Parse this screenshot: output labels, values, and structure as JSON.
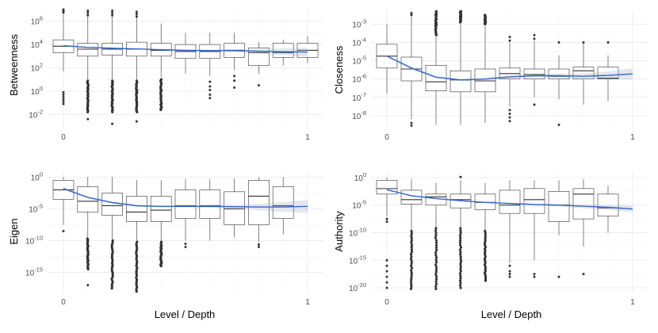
{
  "colors": {
    "trend": "#3366cc",
    "band": "#9aa9c4",
    "box_stroke": "#333333",
    "grid": "#ebebeb"
  },
  "chart_data": [
    {
      "type": "boxplot",
      "id": "betweenness",
      "ylabel": "Betweenness",
      "xlabel": "",
      "scale": "log10",
      "ylim_log10": [
        -3.2,
        7.0
      ],
      "yticks": [
        {
          "exp": -2,
          "label_base": "10",
          "label_exp": "-2"
        },
        {
          "exp": 0,
          "label_base": "10",
          "label_exp": "0"
        },
        {
          "exp": 2,
          "label_base": "10",
          "label_exp": "2"
        },
        {
          "exp": 4,
          "label_base": "10",
          "label_exp": "4"
        },
        {
          "exp": 6,
          "label_base": "10",
          "label_exp": "6"
        }
      ],
      "xticks": [
        {
          "value": 0,
          "label": "0"
        },
        {
          "value": 1,
          "label": "1"
        }
      ],
      "boxes": [
        {
          "x": 0.0,
          "q1": 3.3,
          "median": 3.85,
          "q3": 4.4,
          "lo": 1.7,
          "hi": 6.7,
          "out_lo": [
            -1.1,
            -0.9,
            -0.7,
            -0.5,
            -0.3,
            -0.1
          ],
          "out_hi": [
            6.75,
            6.85,
            7.0
          ],
          "dense_lo": false
        },
        {
          "x": 0.1,
          "q1": 3.0,
          "median": 3.6,
          "q3": 4.1,
          "lo": 1.0,
          "hi": 6.4,
          "out_lo": [
            -2.4,
            0.9
          ],
          "out_hi": [
            6.5,
            6.7,
            6.9
          ],
          "dense_lo": true
        },
        {
          "x": 0.2,
          "q1": 3.1,
          "median": 3.6,
          "q3": 4.1,
          "lo": 1.0,
          "hi": 6.4,
          "out_lo": [
            -2.8,
            0.9
          ],
          "out_hi": [
            6.5,
            6.7,
            6.9
          ],
          "dense_lo": true
        },
        {
          "x": 0.3,
          "q1": 3.0,
          "median": 3.6,
          "q3": 4.2,
          "lo": 1.0,
          "hi": 6.3,
          "out_lo": [
            -2.6,
            0.9
          ],
          "out_hi": [
            6.4,
            6.6,
            6.8
          ],
          "dense_lo": true
        },
        {
          "x": 0.4,
          "q1": 3.0,
          "median": 3.5,
          "q3": 4.1,
          "lo": 1.2,
          "hi": 5.8,
          "out_lo": [
            -1.5,
            1.0
          ],
          "out_hi": [],
          "dense_lo": true
        },
        {
          "x": 0.5,
          "q1": 2.8,
          "median": 3.4,
          "q3": 4.0,
          "lo": 1.5,
          "hi": 5.0,
          "out_lo": [],
          "out_hi": [],
          "dense_lo": false
        },
        {
          "x": 0.6,
          "q1": 2.8,
          "median": 3.4,
          "q3": 4.0,
          "lo": 1.3,
          "hi": 5.0,
          "out_lo": [
            -0.6,
            -0.3,
            0.1,
            0.4,
            0.8
          ],
          "out_hi": [],
          "dense_lo": false
        },
        {
          "x": 0.7,
          "q1": 2.9,
          "median": 3.5,
          "q3": 4.1,
          "lo": 1.8,
          "hi": 5.0,
          "out_lo": [
            0.3,
            0.9,
            1.3
          ],
          "out_hi": [],
          "dense_lo": false
        },
        {
          "x": 0.8,
          "q1": 2.2,
          "median": 3.3,
          "q3": 3.7,
          "lo": 1.5,
          "hi": 4.2,
          "out_lo": [
            0.5
          ],
          "out_hi": [],
          "dense_lo": false
        },
        {
          "x": 0.9,
          "q1": 2.9,
          "median": 3.3,
          "q3": 4.1,
          "lo": 2.2,
          "hi": 4.4,
          "out_lo": [],
          "out_hi": [],
          "dense_lo": false
        },
        {
          "x": 1.0,
          "q1": 2.9,
          "median": 3.5,
          "q3": 4.1,
          "lo": 2.4,
          "hi": 4.7,
          "out_lo": [],
          "out_hi": [],
          "dense_lo": false
        }
      ],
      "trend": [
        [
          0.0,
          3.9
        ],
        [
          0.1,
          3.75
        ],
        [
          0.2,
          3.68
        ],
        [
          0.3,
          3.62
        ],
        [
          0.4,
          3.55
        ],
        [
          0.5,
          3.5
        ],
        [
          0.6,
          3.48
        ],
        [
          0.7,
          3.47
        ],
        [
          0.8,
          3.42
        ],
        [
          0.9,
          3.38
        ],
        [
          1.0,
          3.35
        ]
      ],
      "band_halfwidth": [
        0.05,
        0.05,
        0.05,
        0.05,
        0.05,
        0.06,
        0.08,
        0.12,
        0.2,
        0.3,
        0.38
      ]
    },
    {
      "type": "boxplot",
      "id": "closeness",
      "ylabel": "Closeness",
      "xlabel": "",
      "scale": "log10",
      "ylim_log10": [
        -8.7,
        -2.2
      ],
      "yticks": [
        {
          "exp": -8,
          "label_base": "10",
          "label_exp": "-8"
        },
        {
          "exp": -7,
          "label_base": "10",
          "label_exp": "-7"
        },
        {
          "exp": -6,
          "label_base": "10",
          "label_exp": "-6"
        },
        {
          "exp": -5,
          "label_base": "10",
          "label_exp": "-5"
        },
        {
          "exp": -4,
          "label_base": "10",
          "label_exp": "-4"
        },
        {
          "exp": -3,
          "label_base": "10",
          "label_exp": "-3"
        }
      ],
      "xticks": [
        {
          "value": 0,
          "label": "0"
        },
        {
          "value": 1,
          "label": "1"
        }
      ],
      "boxes": [
        {
          "x": 0.0,
          "q1": -5.4,
          "median": -4.75,
          "q3": -4.1,
          "lo": -6.8,
          "hi": -3.0,
          "out_lo": [],
          "out_hi": [],
          "dense_lo": false
        },
        {
          "x": 0.1,
          "q1": -6.1,
          "median": -5.45,
          "q3": -4.8,
          "lo": -8.2,
          "hi": -2.3,
          "out_lo": [
            -8.4,
            -8.55
          ],
          "out_hi": [
            -2.5,
            -2.4
          ],
          "dense_lo": false
        },
        {
          "x": 0.2,
          "q1": -6.65,
          "median": -6.15,
          "q3": -5.25,
          "lo": -8.5,
          "hi": -3.7,
          "out_lo": [],
          "out_hi": [],
          "dense_lo": false,
          "dense_hi": true,
          "dense_hi_range": [
            -3.6,
            -2.3
          ]
        },
        {
          "x": 0.3,
          "q1": -6.7,
          "median": -6.05,
          "q3": -5.55,
          "lo": -8.5,
          "hi": -3.0,
          "out_lo": [],
          "out_hi": [
            -2.4
          ],
          "dense_lo": false,
          "dense_hi": true,
          "dense_hi_range": [
            -2.9,
            -2.3
          ]
        },
        {
          "x": 0.4,
          "q1": -6.7,
          "median": -6.1,
          "q3": -5.45,
          "lo": -8.4,
          "hi": -3.1,
          "out_lo": [],
          "out_hi": [],
          "dense_lo": false,
          "dense_hi": true,
          "dense_hi_range": [
            -3.0,
            -2.5
          ]
        },
        {
          "x": 0.5,
          "q1": -6.0,
          "median": -5.7,
          "q3": -5.4,
          "lo": -7.5,
          "hi": -4.0,
          "out_lo": [
            -7.7,
            -7.9,
            -8.1,
            -8.3
          ],
          "out_hi": [
            -3.9,
            -3.7
          ],
          "dense_lo": false
        },
        {
          "x": 0.6,
          "q1": -6.0,
          "median": -5.75,
          "q3": -5.45,
          "lo": -7.0,
          "hi": -3.9,
          "out_lo": [
            -7.4
          ],
          "out_hi": [
            -3.8,
            -3.6
          ],
          "dense_lo": false
        },
        {
          "x": 0.7,
          "q1": -6.0,
          "median": -5.85,
          "q3": -5.45,
          "lo": -7.1,
          "hi": -4.7,
          "out_lo": [
            -8.5
          ],
          "out_hi": [
            -4.0
          ],
          "dense_lo": false
        },
        {
          "x": 0.8,
          "q1": -6.0,
          "median": -5.55,
          "q3": -5.35,
          "lo": -7.4,
          "hi": -4.0,
          "out_lo": [],
          "out_hi": [
            -4.0
          ],
          "dense_lo": false
        },
        {
          "x": 0.9,
          "q1": -6.0,
          "median": -5.95,
          "q3": -5.35,
          "lo": -7.2,
          "hi": -4.7,
          "out_lo": [],
          "out_hi": [
            -4.0
          ],
          "dense_lo": false
        }
      ],
      "trend": [
        [
          0.0,
          -4.75
        ],
        [
          0.1,
          -5.4
        ],
        [
          0.2,
          -5.9
        ],
        [
          0.3,
          -6.05
        ],
        [
          0.4,
          -6.0
        ],
        [
          0.5,
          -5.88
        ],
        [
          0.6,
          -5.82
        ],
        [
          0.7,
          -5.82
        ],
        [
          0.8,
          -5.85
        ],
        [
          0.9,
          -5.8
        ],
        [
          1.0,
          -5.72
        ]
      ],
      "band_halfwidth": [
        0.06,
        0.06,
        0.06,
        0.06,
        0.06,
        0.08,
        0.1,
        0.12,
        0.16,
        0.22,
        0.3
      ]
    },
    {
      "type": "boxplot",
      "id": "eigen",
      "ylabel": "Eigen",
      "xlabel": "Level / Depth",
      "scale": "log10",
      "ylim_log10": [
        -18.3,
        0.8
      ],
      "yticks": [
        {
          "exp": -15,
          "label_base": "10",
          "label_exp": "-15"
        },
        {
          "exp": -10,
          "label_base": "10",
          "label_exp": "-10"
        },
        {
          "exp": -5,
          "label_base": "10",
          "label_exp": "-5"
        },
        {
          "exp": 0,
          "label_base": "10",
          "label_exp": "0"
        }
      ],
      "xticks": [
        {
          "value": 0,
          "label": "0"
        },
        {
          "value": 1,
          "label": "1"
        }
      ],
      "boxes": [
        {
          "x": 0.0,
          "q1": -3.5,
          "median": -2.0,
          "q3": -0.5,
          "lo": -7.5,
          "hi": 0.0,
          "out_lo": [
            -8.5
          ],
          "out_hi": [],
          "dense_lo": false
        },
        {
          "x": 0.1,
          "q1": -5.5,
          "median": -3.8,
          "q3": -1.5,
          "lo": -9.5,
          "hi": 0.0,
          "out_lo": [
            -17.0
          ],
          "out_hi": [],
          "dense_lo": true,
          "dense_lo_range": [
            -14.5,
            -9.7
          ]
        },
        {
          "x": 0.2,
          "q1": -6.0,
          "median": -4.5,
          "q3": -2.5,
          "lo": -9.8,
          "hi": 0.0,
          "out_lo": [],
          "out_hi": [],
          "dense_lo": true,
          "dense_lo_range": [
            -17.5,
            -10.0
          ]
        },
        {
          "x": 0.3,
          "q1": -7.0,
          "median": -5.5,
          "q3": -3.0,
          "lo": -10.0,
          "hi": -0.5,
          "out_lo": [],
          "out_hi": [],
          "dense_lo": true,
          "dense_lo_range": [
            -18.0,
            -10.2
          ]
        },
        {
          "x": 0.4,
          "q1": -7.0,
          "median": -5.2,
          "q3": -3.0,
          "lo": -10.0,
          "hi": -0.5,
          "out_lo": [],
          "out_hi": [],
          "dense_lo": true,
          "dense_lo_range": [
            -14.0,
            -10.2
          ]
        },
        {
          "x": 0.5,
          "q1": -6.5,
          "median": -4.5,
          "q3": -2.0,
          "lo": -10.0,
          "hi": -0.3,
          "out_lo": [
            -10.5,
            -11.0
          ],
          "out_hi": [],
          "dense_lo": false
        },
        {
          "x": 0.6,
          "q1": -6.5,
          "median": -4.5,
          "q3": -2.0,
          "lo": -10.0,
          "hi": -0.3,
          "out_lo": [],
          "out_hi": [],
          "dense_lo": false
        },
        {
          "x": 0.7,
          "q1": -7.5,
          "median": -5.0,
          "q3": -2.3,
          "lo": -9.5,
          "hi": -0.2,
          "out_lo": [],
          "out_hi": [],
          "dense_lo": false
        },
        {
          "x": 0.8,
          "q1": -7.5,
          "median": -3.0,
          "q3": -0.5,
          "lo": -10.2,
          "hi": 0.0,
          "out_lo": [
            -10.6,
            -11.0
          ],
          "out_hi": [],
          "dense_lo": false
        },
        {
          "x": 0.9,
          "q1": -6.5,
          "median": -4.5,
          "q3": -1.5,
          "lo": -9.0,
          "hi": 0.0,
          "out_lo": [],
          "out_hi": [],
          "dense_lo": false
        }
      ],
      "trend": [
        [
          0.0,
          -1.8
        ],
        [
          0.1,
          -3.2
        ],
        [
          0.2,
          -4.0
        ],
        [
          0.3,
          -4.5
        ],
        [
          0.4,
          -4.6
        ],
        [
          0.5,
          -4.6
        ],
        [
          0.6,
          -4.6
        ],
        [
          0.7,
          -4.65
        ],
        [
          0.8,
          -4.7
        ],
        [
          0.9,
          -4.7
        ],
        [
          1.0,
          -4.6
        ]
      ],
      "band_halfwidth": [
        0.2,
        0.18,
        0.15,
        0.15,
        0.15,
        0.18,
        0.22,
        0.3,
        0.5,
        0.8,
        1.0
      ]
    },
    {
      "type": "boxplot",
      "id": "authority",
      "ylabel": "Authority",
      "xlabel": "Level / Depth",
      "scale": "log10",
      "ylim_log10": [
        -21.0,
        1.0
      ],
      "yticks": [
        {
          "exp": -20,
          "label_base": "10",
          "label_exp": "-20"
        },
        {
          "exp": -15,
          "label_base": "10",
          "label_exp": "-15"
        },
        {
          "exp": -10,
          "label_base": "10",
          "label_exp": "-10"
        },
        {
          "exp": -5,
          "label_base": "10",
          "label_exp": "-5"
        },
        {
          "exp": 0,
          "label_base": "10",
          "label_exp": "0"
        }
      ],
      "xticks": [
        {
          "value": 0,
          "label": "0"
        },
        {
          "value": 1,
          "label": "1"
        }
      ],
      "boxes": [
        {
          "x": 0.0,
          "q1": -3.0,
          "median": -2.0,
          "q3": -0.5,
          "lo": -7.0,
          "hi": 0.0,
          "out_lo": [
            -7.5,
            -8.0,
            -15.0,
            -16.0,
            -17.0,
            -18.0,
            -19.0,
            -20.0
          ],
          "out_hi": [],
          "dense_lo": false
        },
        {
          "x": 0.1,
          "q1": -4.8,
          "median": -4.0,
          "q3": -2.3,
          "lo": -9.5,
          "hi": -0.3,
          "out_lo": [],
          "out_hi": [],
          "dense_lo": true,
          "dense_lo_range": [
            -20.2,
            -9.7
          ]
        },
        {
          "x": 0.2,
          "q1": -5.0,
          "median": -3.5,
          "q3": -3.0,
          "lo": -9.0,
          "hi": -1.0,
          "out_lo": [],
          "out_hi": [],
          "dense_lo": true,
          "dense_lo_range": [
            -20.2,
            -9.2
          ]
        },
        {
          "x": 0.3,
          "q1": -5.5,
          "median": -4.0,
          "q3": -3.0,
          "lo": -9.0,
          "hi": -0.5,
          "out_lo": [],
          "out_hi": [
            0.1
          ],
          "dense_lo": true,
          "dense_lo_range": [
            -20.0,
            -9.2
          ]
        },
        {
          "x": 0.4,
          "q1": -5.8,
          "median": -4.5,
          "q3": -3.0,
          "lo": -9.5,
          "hi": -1.0,
          "out_lo": [],
          "out_hi": [],
          "dense_lo": true,
          "dense_lo_range": [
            -18.7,
            -9.7
          ]
        },
        {
          "x": 0.5,
          "q1": -6.5,
          "median": -5.0,
          "q3": -2.3,
          "lo": -15.5,
          "hi": -0.5,
          "out_lo": [
            -16.0,
            -17.0,
            -17.5,
            -18.0
          ],
          "out_hi": [],
          "dense_lo": false
        },
        {
          "x": 0.6,
          "q1": -6.5,
          "median": -4.0,
          "q3": -2.0,
          "lo": -15.0,
          "hi": -0.5,
          "out_lo": [
            -17.5,
            -18.0
          ],
          "out_hi": [],
          "dense_lo": false
        },
        {
          "x": 0.7,
          "q1": -8.0,
          "median": -5.0,
          "q3": -2.5,
          "lo": -10.5,
          "hi": -0.5,
          "out_lo": [
            -18.0
          ],
          "out_hi": [],
          "dense_lo": false
        },
        {
          "x": 0.8,
          "q1": -7.5,
          "median": -3.0,
          "q3": -2.0,
          "lo": -12.5,
          "hi": -0.3,
          "out_lo": [
            -17.5
          ],
          "out_hi": [],
          "dense_lo": false
        },
        {
          "x": 0.9,
          "q1": -7.0,
          "median": -5.5,
          "q3": -3.0,
          "lo": -10.0,
          "hi": -1.5,
          "out_lo": [],
          "out_hi": [],
          "dense_lo": false
        }
      ],
      "trend": [
        [
          0.0,
          -2.2
        ],
        [
          0.1,
          -3.3
        ],
        [
          0.2,
          -3.8
        ],
        [
          0.3,
          -4.2
        ],
        [
          0.4,
          -4.5
        ],
        [
          0.5,
          -4.7
        ],
        [
          0.6,
          -4.9
        ],
        [
          0.7,
          -5.0
        ],
        [
          0.8,
          -5.2
        ],
        [
          0.9,
          -5.4
        ],
        [
          1.0,
          -5.7
        ]
      ],
      "band_halfwidth": [
        0.15,
        0.12,
        0.1,
        0.1,
        0.1,
        0.12,
        0.15,
        0.2,
        0.35,
        0.5,
        0.6
      ]
    }
  ]
}
